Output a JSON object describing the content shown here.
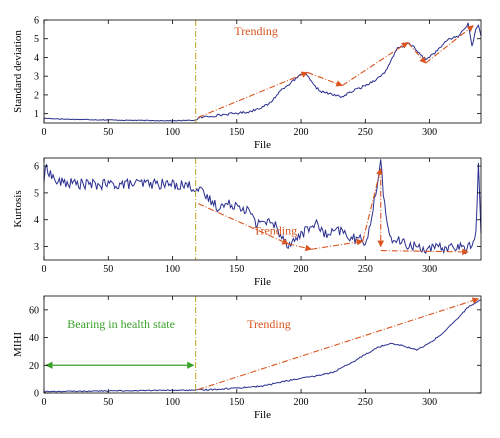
{
  "colors": {
    "series": "#2a2f8f",
    "trend": "#d9541e",
    "health": "#3aa12a",
    "axis": "#000000"
  },
  "chart_data": [
    {
      "type": "line",
      "xlabel": "File",
      "ylabel": "Standard deviation",
      "xlim": [
        0,
        340
      ],
      "ylim": [
        0.5,
        6
      ],
      "xticks": [
        0,
        50,
        100,
        150,
        200,
        250,
        300
      ],
      "yticks": [
        1,
        2,
        3,
        4,
        5,
        6
      ],
      "change_point_x": 118,
      "annotation": {
        "text": "Trending",
        "x": 165,
        "y": 5.2
      },
      "series_anchors": {
        "x": [
          0,
          20,
          60,
          100,
          118,
          122,
          140,
          160,
          175,
          185,
          195,
          202,
          205,
          210,
          215,
          225,
          232,
          240,
          250,
          260,
          265,
          270,
          275,
          280,
          283,
          287,
          292,
          297,
          305,
          315,
          322,
          330,
          333,
          336,
          338,
          340
        ],
        "y": [
          0.75,
          0.7,
          0.65,
          0.62,
          0.65,
          0.8,
          0.95,
          1.1,
          1.5,
          2.3,
          2.8,
          3.2,
          3.0,
          2.5,
          2.2,
          2.0,
          1.9,
          2.2,
          2.5,
          2.9,
          3.2,
          3.8,
          4.5,
          4.6,
          4.8,
          4.6,
          4.2,
          3.9,
          4.3,
          5.0,
          5.1,
          5.8,
          4.6,
          5.5,
          5.7,
          5.2
        ]
      },
      "trend_arrows": [
        {
          "from": [
            120,
            0.8
          ],
          "to": [
            205,
            3.2
          ]
        },
        {
          "from": [
            205,
            3.2
          ],
          "to": [
            232,
            2.5
          ]
        },
        {
          "from": [
            232,
            2.5
          ],
          "to": [
            283,
            4.8
          ]
        },
        {
          "from": [
            283,
            4.8
          ],
          "to": [
            297,
            3.7
          ]
        },
        {
          "from": [
            297,
            3.7
          ],
          "to": [
            334,
            5.7
          ]
        }
      ]
    },
    {
      "type": "line",
      "xlabel": "File",
      "ylabel": "Kurtosis",
      "xlim": [
        0,
        340
      ],
      "ylim": [
        2.5,
        6.3
      ],
      "xticks": [
        0,
        50,
        100,
        150,
        200,
        250,
        300
      ],
      "yticks": [
        3,
        4,
        5,
        6
      ],
      "change_point_x": 118,
      "annotation": {
        "text": "Trending",
        "x": 180,
        "y": 3.45
      },
      "series_anchors": {
        "x": [
          0,
          2,
          5,
          10,
          40,
          80,
          110,
          118,
          125,
          135,
          150,
          160,
          165,
          168,
          180,
          185,
          190,
          195,
          200,
          205,
          210,
          220,
          230,
          240,
          250,
          255,
          258,
          262,
          266,
          270,
          280,
          300,
          320,
          330,
          336,
          338,
          340
        ],
        "y": [
          5.5,
          6.0,
          5.7,
          5.4,
          5.3,
          5.35,
          5.3,
          5.2,
          4.9,
          4.5,
          4.6,
          4.3,
          3.8,
          4.0,
          3.8,
          3.4,
          3.1,
          3.2,
          3.5,
          3.6,
          3.9,
          3.4,
          3.6,
          3.3,
          3.2,
          4.0,
          5.0,
          6.2,
          4.0,
          3.3,
          3.1,
          2.9,
          3.0,
          2.9,
          3.5,
          6.0,
          3.5
        ]
      },
      "trend_arrows": [
        {
          "from": [
            120,
            4.6
          ],
          "to": [
            190,
            3.1
          ]
        },
        {
          "from": [
            190,
            3.1
          ],
          "to": [
            208,
            2.9
          ]
        },
        {
          "from": [
            208,
            2.9
          ],
          "to": [
            248,
            3.2
          ]
        },
        {
          "from": [
            248,
            3.2
          ],
          "to": [
            262,
            5.9
          ]
        },
        {
          "from": [
            262,
            5.9
          ],
          "to": [
            262,
            3.0
          ]
        },
        {
          "from": [
            262,
            2.85
          ],
          "to": [
            330,
            2.8
          ]
        }
      ]
    },
    {
      "type": "line",
      "xlabel": "File",
      "ylabel": "MIHI",
      "xlim": [
        0,
        340
      ],
      "ylim": [
        0,
        70
      ],
      "xticks": [
        0,
        50,
        100,
        150,
        200,
        250,
        300
      ],
      "yticks": [
        0,
        20,
        40,
        60
      ],
      "change_point_x": 118,
      "annotation": {
        "text": "Trending",
        "x": 175,
        "y": 47
      },
      "health_annotation": {
        "text": "Bearing in health state",
        "x": 60,
        "y": 47
      },
      "health_arrow": {
        "from": [
          0,
          20
        ],
        "to": [
          118,
          20
        ]
      },
      "series_anchors": {
        "x": [
          0,
          50,
          100,
          118,
          140,
          170,
          190,
          210,
          225,
          240,
          250,
          260,
          270,
          280,
          290,
          300,
          310,
          320,
          330,
          340
        ],
        "y": [
          1,
          1.5,
          2,
          2,
          3,
          5,
          9,
          12,
          15,
          22,
          28,
          33,
          36,
          34,
          31,
          36,
          43,
          52,
          62,
          67
        ]
      },
      "trend_arrows": [
        {
          "from": [
            120,
            2.5
          ],
          "to": [
            338,
            68
          ]
        }
      ]
    }
  ]
}
